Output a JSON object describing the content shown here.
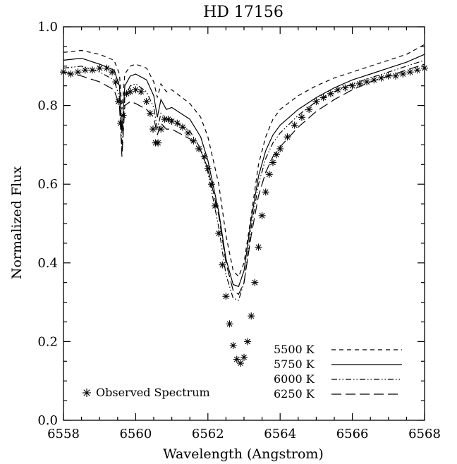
{
  "chart_data": {
    "type": "line",
    "title": "HD 17156",
    "xlabel": "Wavelength (Angstrom)",
    "ylabel": "Normalized Flux",
    "xlim": [
      6558,
      6568
    ],
    "ylim": [
      0.0,
      1.0
    ],
    "x_ticks": [
      6558,
      6560,
      6562,
      6564,
      6566,
      6568
    ],
    "x_tick_labels": [
      "6558",
      "6560",
      "6562",
      "6564",
      "6566",
      "6568"
    ],
    "y_ticks": [
      0.0,
      0.2,
      0.4,
      0.6,
      0.8,
      1.0
    ],
    "y_tick_labels": [
      "0.0",
      "0.2",
      "0.4",
      "0.6",
      "0.8",
      "1.0"
    ],
    "legend_position": "bottom-right",
    "series": [
      {
        "name": "5500 K",
        "legend_label": "5500 K",
        "style": "dashed",
        "x": [
          6558.0,
          6558.5,
          6559.0,
          6559.4,
          6559.55,
          6559.62,
          6559.7,
          6559.85,
          6560.0,
          6560.3,
          6560.5,
          6560.6,
          6560.7,
          6560.85,
          6561.0,
          6561.5,
          6561.8,
          6562.0,
          6562.3,
          6562.5,
          6562.7,
          6562.85,
          6563.0,
          6563.2,
          6563.4,
          6563.6,
          6563.8,
          6564.0,
          6564.5,
          6565.0,
          6565.5,
          6566.0,
          6566.5,
          6567.0,
          6567.5,
          6568.0
        ],
        "y": [
          0.935,
          0.94,
          0.93,
          0.915,
          0.88,
          0.79,
          0.88,
          0.9,
          0.905,
          0.895,
          0.86,
          0.82,
          0.855,
          0.835,
          0.84,
          0.805,
          0.77,
          0.72,
          0.6,
          0.47,
          0.38,
          0.365,
          0.4,
          0.52,
          0.65,
          0.72,
          0.765,
          0.79,
          0.825,
          0.85,
          0.87,
          0.885,
          0.9,
          0.915,
          0.93,
          0.955
        ]
      },
      {
        "name": "5750 K",
        "legend_label": "5750 K",
        "style": "solid",
        "x": [
          6558.0,
          6558.5,
          6559.0,
          6559.4,
          6559.55,
          6559.62,
          6559.7,
          6559.85,
          6560.0,
          6560.3,
          6560.5,
          6560.6,
          6560.7,
          6560.85,
          6561.0,
          6561.5,
          6561.8,
          6562.0,
          6562.3,
          6562.5,
          6562.7,
          6562.85,
          6563.0,
          6563.2,
          6563.4,
          6563.6,
          6563.8,
          6564.0,
          6564.5,
          6565.0,
          6565.5,
          6566.0,
          6566.5,
          6567.0,
          6567.5,
          6568.0
        ],
        "y": [
          0.915,
          0.92,
          0.905,
          0.89,
          0.85,
          0.73,
          0.85,
          0.875,
          0.88,
          0.865,
          0.825,
          0.77,
          0.815,
          0.79,
          0.795,
          0.765,
          0.72,
          0.66,
          0.53,
          0.41,
          0.345,
          0.34,
          0.38,
          0.51,
          0.62,
          0.685,
          0.725,
          0.75,
          0.79,
          0.82,
          0.845,
          0.865,
          0.88,
          0.895,
          0.91,
          0.93
        ]
      },
      {
        "name": "6000 K",
        "legend_label": "6000 K",
        "style": "dash-dot-dot",
        "x": [
          6558.0,
          6558.5,
          6559.0,
          6559.4,
          6559.55,
          6559.62,
          6559.7,
          6559.85,
          6560.0,
          6560.3,
          6560.5,
          6560.6,
          6560.7,
          6560.85,
          6561.0,
          6561.5,
          6561.8,
          6562.0,
          6562.3,
          6562.5,
          6562.7,
          6562.85,
          6563.0,
          6563.2,
          6563.4,
          6563.6,
          6563.8,
          6564.0,
          6564.5,
          6565.0,
          6565.5,
          6566.0,
          6566.5,
          6567.0,
          6567.5,
          6568.0
        ],
        "y": [
          0.895,
          0.9,
          0.885,
          0.865,
          0.82,
          0.69,
          0.82,
          0.85,
          0.855,
          0.835,
          0.795,
          0.74,
          0.78,
          0.765,
          0.765,
          0.735,
          0.69,
          0.63,
          0.49,
          0.37,
          0.31,
          0.305,
          0.35,
          0.49,
          0.6,
          0.665,
          0.705,
          0.73,
          0.775,
          0.81,
          0.835,
          0.855,
          0.87,
          0.885,
          0.9,
          0.915
        ]
      },
      {
        "name": "6250 K",
        "legend_label": "6250 K",
        "style": "long-dashed",
        "x": [
          6558.0,
          6558.5,
          6559.0,
          6559.4,
          6559.55,
          6559.62,
          6559.7,
          6559.85,
          6560.0,
          6560.3,
          6560.5,
          6560.6,
          6560.7,
          6560.85,
          6561.0,
          6561.5,
          6561.8,
          6562.0,
          6562.3,
          6562.5,
          6562.7,
          6562.85,
          6563.0,
          6563.2,
          6563.4,
          6563.6,
          6563.8,
          6564.0,
          6564.5,
          6565.0,
          6565.5,
          6566.0,
          6566.5,
          6567.0,
          6567.5,
          6568.0
        ],
        "y": [
          0.885,
          0.875,
          0.86,
          0.84,
          0.8,
          0.67,
          0.8,
          0.81,
          0.805,
          0.79,
          0.77,
          0.725,
          0.755,
          0.74,
          0.74,
          0.715,
          0.685,
          0.64,
          0.52,
          0.4,
          0.33,
          0.32,
          0.35,
          0.47,
          0.57,
          0.63,
          0.67,
          0.695,
          0.745,
          0.785,
          0.815,
          0.84,
          0.86,
          0.875,
          0.89,
          0.905
        ]
      },
      {
        "name": "Observed Spectrum",
        "legend_label": "Observed Spectrum",
        "style": "asterisk",
        "x": [
          6558.0,
          6558.2,
          6558.4,
          6558.6,
          6558.8,
          6559.0,
          6559.2,
          6559.35,
          6559.45,
          6559.52,
          6559.58,
          6559.65,
          6559.75,
          6559.85,
          6560.0,
          6560.15,
          6560.3,
          6560.4,
          6560.48,
          6560.55,
          6560.62,
          6560.7,
          6560.8,
          6560.9,
          6561.0,
          6561.15,
          6561.3,
          6561.45,
          6561.6,
          6561.75,
          6561.9,
          6562.0,
          6562.1,
          6562.2,
          6562.3,
          6562.4,
          6562.5,
          6562.6,
          6562.7,
          6562.8,
          6562.9,
          6563.0,
          6563.1,
          6563.2,
          6563.3,
          6563.4,
          6563.5,
          6563.6,
          6563.7,
          6563.8,
          6563.9,
          6564.0,
          6564.2,
          6564.4,
          6564.6,
          6564.8,
          6565.0,
          6565.2,
          6565.4,
          6565.6,
          6565.8,
          6566.0,
          6566.2,
          6566.4,
          6566.6,
          6566.8,
          6567.0,
          6567.2,
          6567.4,
          6567.6,
          6567.8,
          6568.0
        ],
        "y": [
          0.885,
          0.88,
          0.885,
          0.89,
          0.89,
          0.895,
          0.895,
          0.885,
          0.86,
          0.81,
          0.755,
          0.775,
          0.83,
          0.835,
          0.84,
          0.835,
          0.81,
          0.78,
          0.74,
          0.705,
          0.705,
          0.74,
          0.765,
          0.765,
          0.76,
          0.755,
          0.745,
          0.73,
          0.71,
          0.69,
          0.67,
          0.64,
          0.6,
          0.545,
          0.475,
          0.395,
          0.315,
          0.245,
          0.19,
          0.155,
          0.145,
          0.16,
          0.2,
          0.265,
          0.35,
          0.44,
          0.52,
          0.58,
          0.625,
          0.655,
          0.675,
          0.69,
          0.72,
          0.75,
          0.77,
          0.79,
          0.81,
          0.82,
          0.83,
          0.84,
          0.845,
          0.85,
          0.855,
          0.86,
          0.865,
          0.87,
          0.875,
          0.875,
          0.88,
          0.885,
          0.89,
          0.895
        ]
      }
    ]
  }
}
